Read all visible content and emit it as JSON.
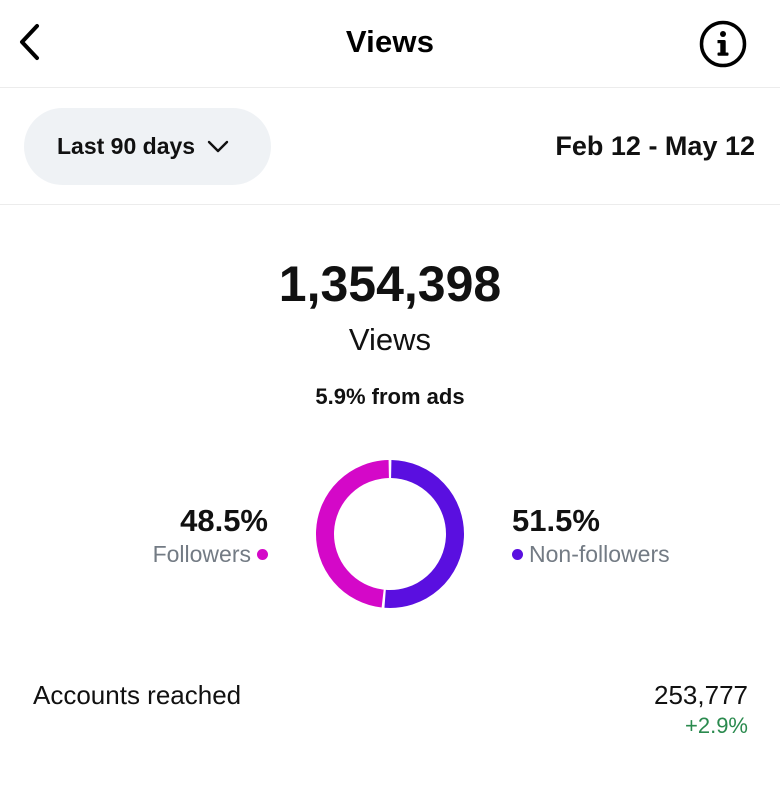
{
  "header": {
    "title": "Views",
    "back_icon": "chevron-left-icon",
    "info_icon": "info-circle-icon"
  },
  "filter": {
    "range_label": "Last 90 days",
    "range_icon": "chevron-down-icon",
    "date_range": "Feb 12 - May 12"
  },
  "summary": {
    "total": "1,354,398",
    "total_label": "Views",
    "ads_note": "5.9% from ads"
  },
  "breakdown": {
    "followers": {
      "percent": "48.5%",
      "label": "Followers",
      "color": "#d408c8"
    },
    "non_followers": {
      "percent": "51.5%",
      "label": "Non-followers",
      "color": "#5a0fe0"
    }
  },
  "chart_data": {
    "type": "pie",
    "categories": [
      "Followers",
      "Non-followers"
    ],
    "values": [
      48.5,
      51.5
    ],
    "colors": [
      "#d408c8",
      "#5a0fe0"
    ],
    "style": "donut"
  },
  "reach": {
    "label": "Accounts reached",
    "value": "253,777",
    "change": "+2.9%",
    "change_color": "#2a8a4e"
  }
}
